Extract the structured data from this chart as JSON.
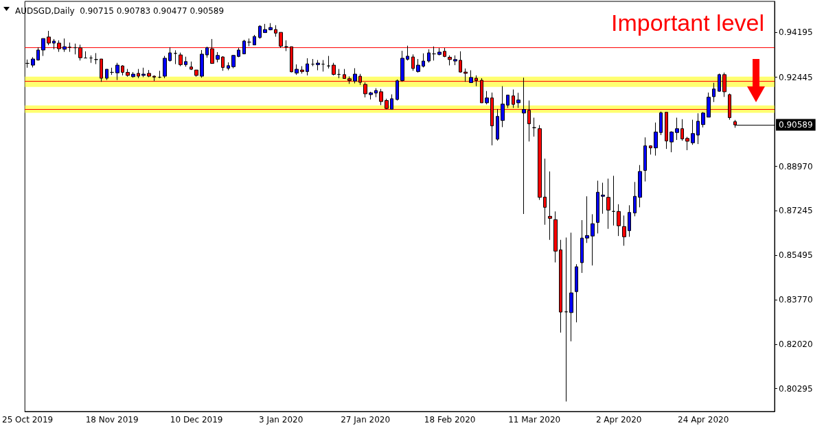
{
  "chart_data": {
    "type": "candlestick",
    "title": "AUDSGD,Daily  0.90715 0.90783 0.90477 0.90589",
    "annotations": [
      "Important level"
    ],
    "categories": [
      "25 Oct 2019",
      null,
      null,
      null,
      null,
      null,
      null,
      null,
      null,
      null,
      null,
      null,
      null,
      null,
      null,
      null,
      "18 Nov 2019",
      null,
      null,
      null,
      null,
      null,
      null,
      null,
      null,
      null,
      null,
      null,
      null,
      null,
      null,
      null,
      "10 Dec 2019",
      null,
      null,
      null,
      null,
      null,
      null,
      null,
      null,
      null,
      null,
      null,
      null,
      null,
      null,
      null,
      "3 Jan 2020",
      null,
      null,
      null,
      null,
      null,
      null,
      null,
      null,
      null,
      null,
      null,
      null,
      null,
      null,
      null,
      "27 Jan 2020",
      null,
      null,
      null,
      null,
      null,
      null,
      null,
      null,
      null,
      null,
      null,
      null,
      null,
      null,
      null,
      "18 Feb 2020",
      null,
      null,
      null,
      null,
      null,
      null,
      null,
      null,
      null,
      null,
      null,
      null,
      null,
      null,
      null,
      "11 Mar 2020",
      null,
      null,
      null,
      null,
      null,
      null,
      null,
      null,
      null,
      null,
      null,
      null,
      null,
      null,
      null,
      "2 Apr 2020",
      null,
      null,
      null,
      null,
      null,
      null,
      null,
      null,
      null,
      null,
      null,
      null,
      null,
      null,
      null,
      "24 Apr 2020",
      null,
      null,
      null,
      null,
      null,
      null
    ],
    "ohlc": [
      [
        0.9299,
        0.9314,
        0.9282,
        0.9299
      ],
      [
        0.9292,
        0.9323,
        0.9283,
        0.9316
      ],
      [
        0.9312,
        0.9362,
        0.931,
        0.9351
      ],
      [
        0.9351,
        0.9396,
        0.9328,
        0.9396
      ],
      [
        0.9402,
        0.9426,
        0.937,
        0.9378
      ],
      [
        0.9378,
        0.9394,
        0.9354,
        0.9386
      ],
      [
        0.9378,
        0.9389,
        0.9344,
        0.9356
      ],
      [
        0.9354,
        0.9396,
        0.9344,
        0.9364
      ],
      [
        0.9362,
        0.938,
        0.9344,
        0.9362
      ],
      [
        0.936,
        0.9376,
        0.9334,
        0.936
      ],
      [
        0.936,
        0.9372,
        0.931,
        0.9321
      ],
      [
        0.932,
        0.9346,
        0.9319,
        0.932
      ],
      [
        0.932,
        0.933,
        0.9301,
        0.932
      ],
      [
        0.9314,
        0.9339,
        0.9296,
        0.9314
      ],
      [
        0.9316,
        0.9316,
        0.9227,
        0.9241
      ],
      [
        0.9241,
        0.9276,
        0.9234,
        0.9276
      ],
      [
        0.9264,
        0.9282,
        0.9254,
        0.9264
      ],
      [
        0.9262,
        0.9301,
        0.9234,
        0.9292
      ],
      [
        0.9289,
        0.9292,
        0.9252,
        0.9264
      ],
      [
        0.9264,
        0.9277,
        0.9247,
        0.9252
      ],
      [
        0.9247,
        0.9265,
        0.9243,
        0.9257
      ],
      [
        0.926,
        0.9277,
        0.9241,
        0.9249
      ],
      [
        0.9252,
        0.9282,
        0.9245,
        0.9257
      ],
      [
        0.926,
        0.9273,
        0.9245,
        0.9249
      ],
      [
        0.9249,
        0.9252,
        0.923,
        0.9245
      ],
      [
        0.9245,
        0.927,
        0.9241,
        0.9245
      ],
      [
        0.9249,
        0.9328,
        0.9241,
        0.9319
      ],
      [
        0.931,
        0.9362,
        0.9306,
        0.934
      ],
      [
        0.9338,
        0.935,
        0.9296,
        0.9338
      ],
      [
        0.9332,
        0.9341,
        0.9288,
        0.9294
      ],
      [
        0.9294,
        0.9325,
        0.9286,
        0.9306
      ],
      [
        0.9285,
        0.9306,
        0.9273,
        0.9276
      ],
      [
        0.9273,
        0.9273,
        0.9247,
        0.9252
      ],
      [
        0.9249,
        0.9351,
        0.9243,
        0.9335
      ],
      [
        0.9332,
        0.9364,
        0.9321,
        0.936
      ],
      [
        0.9356,
        0.9394,
        0.9297,
        0.9299
      ],
      [
        0.9315,
        0.9343,
        0.9303,
        0.933
      ],
      [
        0.9324,
        0.9327,
        0.927,
        0.9283
      ],
      [
        0.928,
        0.9303,
        0.9272,
        0.929
      ],
      [
        0.9286,
        0.9332,
        0.928,
        0.933
      ],
      [
        0.9326,
        0.936,
        0.9323,
        0.9351
      ],
      [
        0.9336,
        0.9391,
        0.9335,
        0.9386
      ],
      [
        0.9382,
        0.9396,
        0.9366,
        0.9382
      ],
      [
        0.9371,
        0.941,
        0.9371,
        0.9404
      ],
      [
        0.94,
        0.9448,
        0.9395,
        0.9444
      ],
      [
        0.9419,
        0.9453,
        0.9419,
        0.9431
      ],
      [
        0.943,
        0.9456,
        0.9428,
        0.9439
      ],
      [
        0.9431,
        0.9448,
        0.9403,
        0.9417
      ],
      [
        0.942,
        0.942,
        0.936,
        0.9366
      ],
      [
        0.9364,
        0.9389,
        0.9347,
        0.9364
      ],
      [
        0.9364,
        0.9364,
        0.9264,
        0.9266
      ],
      [
        0.9261,
        0.9295,
        0.9254,
        0.9276
      ],
      [
        0.9273,
        0.9288,
        0.9259,
        0.9267
      ],
      [
        0.9267,
        0.9319,
        0.9252,
        0.9297
      ],
      [
        0.9296,
        0.9316,
        0.9288,
        0.9296
      ],
      [
        0.9294,
        0.9312,
        0.9272,
        0.93
      ],
      [
        0.9296,
        0.9312,
        0.9267,
        0.9296
      ],
      [
        0.9289,
        0.9328,
        0.9279,
        0.9289
      ],
      [
        0.9292,
        0.9301,
        0.9252,
        0.9256
      ],
      [
        0.9256,
        0.9277,
        0.9241,
        0.9256
      ],
      [
        0.9255,
        0.9277,
        0.9239,
        0.924
      ],
      [
        0.9239,
        0.9248,
        0.9219,
        0.9232
      ],
      [
        0.923,
        0.928,
        0.9221,
        0.9257
      ],
      [
        0.9249,
        0.9258,
        0.9215,
        0.9225
      ],
      [
        0.9217,
        0.9225,
        0.9166,
        0.918
      ],
      [
        0.9177,
        0.9188,
        0.9158,
        0.9184
      ],
      [
        0.9183,
        0.9202,
        0.9167,
        0.9193
      ],
      [
        0.9188,
        0.9199,
        0.9136,
        0.915
      ],
      [
        0.9154,
        0.9161,
        0.912,
        0.9123
      ],
      [
        0.912,
        0.9178,
        0.912,
        0.9161
      ],
      [
        0.9158,
        0.9236,
        0.9154,
        0.9231
      ],
      [
        0.9232,
        0.9348,
        0.9227,
        0.9319
      ],
      [
        0.9315,
        0.9368,
        0.931,
        0.9327
      ],
      [
        0.9324,
        0.9334,
        0.927,
        0.9279
      ],
      [
        0.9267,
        0.9316,
        0.9263,
        0.9292
      ],
      [
        0.9288,
        0.9338,
        0.9283,
        0.9308
      ],
      [
        0.9308,
        0.9354,
        0.9302,
        0.934
      ],
      [
        0.9336,
        0.9365,
        0.931,
        0.9336
      ],
      [
        0.9334,
        0.9359,
        0.933,
        0.9343
      ],
      [
        0.9346,
        0.9359,
        0.9323,
        0.9326
      ],
      [
        0.9323,
        0.933,
        0.9291,
        0.9314
      ],
      [
        0.9308,
        0.933,
        0.9292,
        0.9314
      ],
      [
        0.9311,
        0.9346,
        0.9263,
        0.9265
      ],
      [
        0.9265,
        0.9279,
        0.9227,
        0.926
      ],
      [
        0.9224,
        0.9272,
        0.9223,
        0.9244
      ],
      [
        0.9241,
        0.9252,
        0.921,
        0.9232
      ],
      [
        0.9233,
        0.9241,
        0.9145,
        0.9145
      ],
      [
        0.9145,
        0.9191,
        0.9139,
        0.9164
      ],
      [
        0.9164,
        0.9185,
        0.8979,
        0.9055
      ],
      [
        0.9003,
        0.9121,
        0.8997,
        0.9092
      ],
      [
        0.9076,
        0.921,
        0.905,
        0.914
      ],
      [
        0.9136,
        0.9175,
        0.9125,
        0.9175
      ],
      [
        0.9172,
        0.9197,
        0.9125,
        0.9139
      ],
      [
        0.9145,
        0.9184,
        0.9125,
        0.9156
      ],
      [
        0.9105,
        0.9243,
        0.8711,
        0.9119
      ],
      [
        0.9116,
        0.9154,
        0.8994,
        0.9063
      ],
      [
        0.9048,
        0.9087,
        0.9013,
        0.9048
      ],
      [
        0.9044,
        0.9058,
        0.8766,
        0.8776
      ],
      [
        0.8777,
        0.8927,
        0.8669,
        0.8737
      ],
      [
        0.8702,
        0.8877,
        0.861,
        0.8694
      ],
      [
        0.8689,
        0.8721,
        0.8522,
        0.8566
      ],
      [
        0.8571,
        0.861,
        0.8248,
        0.8328
      ],
      [
        0.8329,
        0.8619,
        0.7979,
        0.8329
      ],
      [
        0.8326,
        0.8638,
        0.8214,
        0.8403
      ],
      [
        0.8408,
        0.8515,
        0.8288,
        0.8505
      ],
      [
        0.8521,
        0.8687,
        0.8481,
        0.8617
      ],
      [
        0.8617,
        0.878,
        0.8598,
        0.8627
      ],
      [
        0.8625,
        0.871,
        0.851,
        0.8673
      ],
      [
        0.8678,
        0.8841,
        0.8635,
        0.8796
      ],
      [
        0.878,
        0.8833,
        0.8712,
        0.8785
      ],
      [
        0.8776,
        0.8849,
        0.8653,
        0.8726
      ],
      [
        0.8721,
        0.886,
        0.8666,
        0.8721
      ],
      [
        0.8721,
        0.8749,
        0.8625,
        0.8665
      ],
      [
        0.8662,
        0.8705,
        0.8587,
        0.8622
      ],
      [
        0.8646,
        0.8745,
        0.8622,
        0.8717
      ],
      [
        0.8715,
        0.8836,
        0.8702,
        0.878
      ],
      [
        0.8776,
        0.8902,
        0.8737,
        0.8877
      ],
      [
        0.8881,
        0.901,
        0.8838,
        0.8977
      ],
      [
        0.8977,
        0.8979,
        0.8943,
        0.8969
      ],
      [
        0.8969,
        0.9068,
        0.8939,
        0.9031
      ],
      [
        0.9029,
        0.9111,
        0.9019,
        0.9106
      ],
      [
        0.9108,
        0.9108,
        0.8965,
        0.8996
      ],
      [
        0.8992,
        0.9034,
        0.8952,
        0.9031
      ],
      [
        0.9029,
        0.9087,
        0.9,
        0.9044
      ],
      [
        0.9044,
        0.9081,
        0.8997,
        0.9004
      ],
      [
        0.9006,
        0.9012,
        0.896,
        0.8995
      ],
      [
        0.8989,
        0.9079,
        0.8981,
        0.9025
      ],
      [
        0.9019,
        0.9104,
        0.8984,
        0.9073
      ],
      [
        0.906,
        0.9109,
        0.9049,
        0.9105
      ],
      [
        0.9089,
        0.9185,
        0.9089,
        0.9167
      ],
      [
        0.9169,
        0.9223,
        0.9148,
        0.9199
      ],
      [
        0.919,
        0.9259,
        0.9188,
        0.9255
      ],
      [
        0.9255,
        0.9263,
        0.9168,
        0.9188
      ],
      [
        0.9177,
        0.9181,
        0.9079,
        0.9087
      ],
      [
        0.90715,
        0.90783,
        0.90477,
        0.90589
      ]
    ],
    "colors": [
      "#000000",
      "#0000ff",
      "#0000ff",
      "#0000ff",
      "#ff0000",
      "#0000ff",
      "#ff0000",
      "#0000ff",
      "#000000",
      "#000000",
      "#ff0000",
      "#000000",
      "#000000",
      "#000000",
      "#ff0000",
      "#0000ff",
      "#000000",
      "#0000ff",
      "#ff0000",
      "#ff0000",
      "#0000ff",
      "#ff0000",
      "#0000ff",
      "#ff0000",
      "#ff0000",
      "#000000",
      "#0000ff",
      "#0000ff",
      "#000000",
      "#ff0000",
      "#0000ff",
      "#ff0000",
      "#ff0000",
      "#0000ff",
      "#0000ff",
      "#ff0000",
      "#0000ff",
      "#ff0000",
      "#0000ff",
      "#0000ff",
      "#0000ff",
      "#0000ff",
      "#000000",
      "#0000ff",
      "#0000ff",
      "#0000ff",
      "#0000ff",
      "#ff0000",
      "#ff0000",
      "#000000",
      "#ff0000",
      "#0000ff",
      "#ff0000",
      "#0000ff",
      "#000000",
      "#0000ff",
      "#000000",
      "#000000",
      "#ff0000",
      "#000000",
      "#ff0000",
      "#ff0000",
      "#0000ff",
      "#ff0000",
      "#ff0000",
      "#0000ff",
      "#0000ff",
      "#ff0000",
      "#ff0000",
      "#0000ff",
      "#0000ff",
      "#0000ff",
      "#0000ff",
      "#ff0000",
      "#0000ff",
      "#0000ff",
      "#0000ff",
      "#000000",
      "#0000ff",
      "#ff0000",
      "#ff0000",
      "#0000ff",
      "#ff0000",
      "#ff0000",
      "#0000ff",
      "#ff0000",
      "#ff0000",
      "#0000ff",
      "#ff0000",
      "#0000ff",
      "#0000ff",
      "#0000ff",
      "#ff0000",
      "#0000ff",
      "#0000ff",
      "#ff0000",
      "#000000",
      "#ff0000",
      "#ff0000",
      "#ff0000",
      "#ff0000",
      "#ff0000",
      "#000000",
      "#0000ff",
      "#0000ff",
      "#0000ff",
      "#0000ff",
      "#0000ff",
      "#0000ff",
      "#0000ff",
      "#ff0000",
      "#000000",
      "#ff0000",
      "#ff0000",
      "#0000ff",
      "#0000ff",
      "#0000ff",
      "#0000ff",
      "#ff0000",
      "#0000ff",
      "#0000ff",
      "#ff0000",
      "#0000ff",
      "#0000ff",
      "#ff0000",
      "#ff0000",
      "#0000ff",
      "#0000ff",
      "#0000ff",
      "#0000ff",
      "#0000ff",
      "#0000ff",
      "#ff0000",
      "#ff0000",
      "#ff0000"
    ],
    "ylim": [
      0.794,
      0.9541
    ],
    "yticks": [
      0.94195,
      0.92445,
      {
        "value": 0.8897,
        "label": "0.88970"
      },
      0.87245,
      0.85495,
      {
        "value": 0.8377,
        "label": "0.83770"
      },
      {
        "value": 0.8202,
        "label": "0.82020"
      },
      0.80295
    ],
    "ref_lines": [
      {
        "axis": "y",
        "value": 0.9362,
        "color": "#ff0000"
      },
      {
        "axis": "y",
        "value": 0.9229,
        "color": "#ff0000"
      },
      {
        "axis": "y",
        "value": 0.9119,
        "color": "#ff0000"
      },
      {
        "axis": "y",
        "value": 0.90589,
        "label": "0.90589",
        "color": "#000000"
      }
    ],
    "bands": [
      {
        "axis": "y",
        "from": 0.9207,
        "to": 0.9247,
        "color": "#ffff33"
      },
      {
        "axis": "y",
        "from": 0.9106,
        "to": 0.9135,
        "color": "#ffff33"
      }
    ],
    "grid": false
  }
}
